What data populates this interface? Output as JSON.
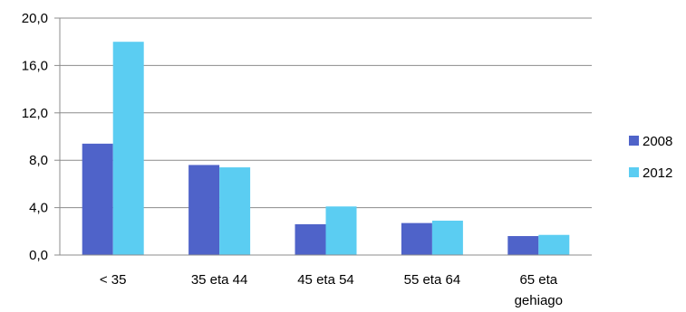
{
  "chart_data": {
    "type": "bar",
    "categories": [
      [
        "< 35"
      ],
      [
        "35 eta 44"
      ],
      [
        "45 eta 54"
      ],
      [
        "55 eta 64"
      ],
      [
        "65 eta",
        "gehiago"
      ]
    ],
    "series": [
      {
        "name": "2008",
        "color": "#4f63c9",
        "values": [
          9.4,
          7.6,
          2.6,
          2.7,
          1.6
        ]
      },
      {
        "name": "2012",
        "color": "#5bcdf2",
        "values": [
          18.0,
          7.4,
          4.1,
          2.9,
          1.7
        ]
      }
    ],
    "yticks": [
      "0,0",
      "4,0",
      "8,0",
      "12,0",
      "16,0",
      "20,0"
    ],
    "ylim": [
      0,
      20
    ],
    "ytick_step": 4,
    "grid": true,
    "legend_position": "right",
    "title": "",
    "xlabel": "",
    "ylabel": ""
  }
}
